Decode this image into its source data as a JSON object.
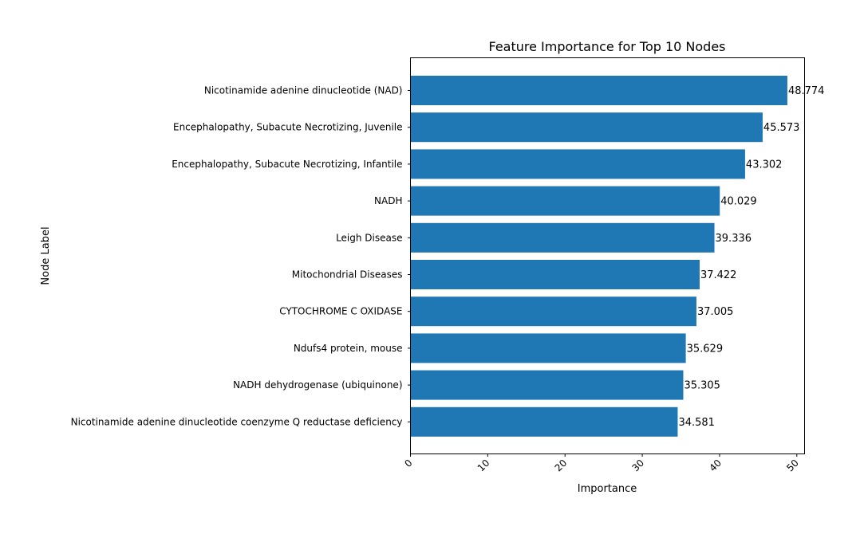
{
  "chart_data": {
    "type": "bar",
    "orientation": "horizontal",
    "title": "Feature Importance for Top 10 Nodes",
    "xlabel": "Importance",
    "ylabel": "Node Label",
    "xlim": [
      0,
      51
    ],
    "xticks": [
      0,
      10,
      20,
      30,
      40,
      50
    ],
    "grid": false,
    "bar_color": "#1f77b4",
    "categories": [
      "Nicotinamide adenine dinucleotide (NAD)",
      "Encephalopathy, Subacute Necrotizing, Juvenile",
      "Encephalopathy, Subacute Necrotizing, Infantile",
      "NADH",
      "Leigh Disease",
      "Mitochondrial Diseases",
      "CYTOCHROME C OXIDASE",
      "Ndufs4 protein, mouse",
      "NADH dehydrogenase (ubiquinone)",
      "Nicotinamide adenine dinucleotide coenzyme Q reductase deficiency"
    ],
    "values": [
      48.774,
      45.573,
      43.302,
      40.029,
      39.336,
      37.422,
      37.005,
      35.629,
      35.305,
      34.581
    ],
    "value_labels": [
      "48.774",
      "45.573",
      "43.302",
      "40.029",
      "39.336",
      "37.422",
      "37.005",
      "35.629",
      "35.305",
      "34.581"
    ]
  }
}
